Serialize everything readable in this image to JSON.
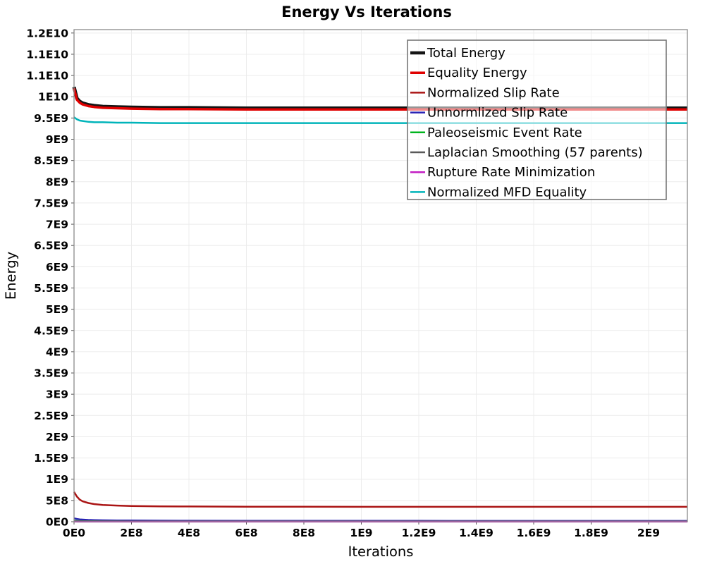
{
  "page": {
    "title": "Energy Vs Iterations"
  },
  "chart_data": {
    "type": "line",
    "title": "Energy Vs Iterations",
    "xlabel": "Iterations",
    "ylabel": "Energy",
    "grid": true,
    "legend_position": "top-right",
    "xlim": [
      0,
      2135000000.0
    ],
    "ylim": [
      0,
      11580000000.0
    ],
    "x_ticks": [
      {
        "value": 0,
        "label": "0E0"
      },
      {
        "value": 200000000.0,
        "label": "2E8"
      },
      {
        "value": 400000000.0,
        "label": "4E8"
      },
      {
        "value": 600000000.0,
        "label": "6E8"
      },
      {
        "value": 800000000.0,
        "label": "8E8"
      },
      {
        "value": 1000000000.0,
        "label": "1E9"
      },
      {
        "value": 1200000000.0,
        "label": "1.2E9"
      },
      {
        "value": 1400000000.0,
        "label": "1.4E9"
      },
      {
        "value": 1600000000.0,
        "label": "1.6E9"
      },
      {
        "value": 1800000000.0,
        "label": "1.8E9"
      },
      {
        "value": 2000000000.0,
        "label": "2E9"
      }
    ],
    "y_ticks": [
      {
        "value": 0,
        "label": "0E0"
      },
      {
        "value": 500000000.0,
        "label": "5E8"
      },
      {
        "value": 1000000000.0,
        "label": "1E9"
      },
      {
        "value": 1500000000.0,
        "label": "1.5E9"
      },
      {
        "value": 2000000000.0,
        "label": "2E9"
      },
      {
        "value": 2500000000.0,
        "label": "2.5E9"
      },
      {
        "value": 3000000000.0,
        "label": "3E9"
      },
      {
        "value": 3500000000.0,
        "label": "3.5E9"
      },
      {
        "value": 4000000000.0,
        "label": "4E9"
      },
      {
        "value": 4500000000.0,
        "label": "4.5E9"
      },
      {
        "value": 5000000000.0,
        "label": "5E9"
      },
      {
        "value": 5500000000.0,
        "label": "5.5E9"
      },
      {
        "value": 6000000000.0,
        "label": "6E9"
      },
      {
        "value": 6500000000.0,
        "label": "6.5E9"
      },
      {
        "value": 7000000000.0,
        "label": "7E9"
      },
      {
        "value": 7500000000.0,
        "label": "7.5E9"
      },
      {
        "value": 8000000000.0,
        "label": "8E9"
      },
      {
        "value": 8500000000.0,
        "label": "8.5E9"
      },
      {
        "value": 9000000000.0,
        "label": "9E9"
      },
      {
        "value": 9500000000.0,
        "label": "9.5E9"
      },
      {
        "value": 10000000000.0,
        "label": "1E10"
      },
      {
        "value": 10500000000.0,
        "label": "1.1E10"
      },
      {
        "value": 11000000000.0,
        "label": "1.1E10"
      },
      {
        "value": 11500000000.0,
        "label": "1.2E10"
      }
    ],
    "x_sample": [
      0,
      10000000.0,
      20000000.0,
      30000000.0,
      50000000.0,
      70000000.0,
      100000000.0,
      150000000.0,
      200000000.0,
      300000000.0,
      400000000.0,
      600000000.0,
      800000000.0,
      1000000000.0,
      1200000000.0,
      1500000000.0,
      1800000000.0,
      2000000000.0,
      2135000000.0
    ],
    "series": [
      {
        "name": "Total Energy",
        "color": "#141414",
        "width": 5,
        "y": [
          10230000000.0,
          9960000000.0,
          9890000000.0,
          9850000000.0,
          9810000000.0,
          9790000000.0,
          9770000000.0,
          9760000000.0,
          9750000000.0,
          9740000000.0,
          9740000000.0,
          9730000000.0,
          9730000000.0,
          9730000000.0,
          9730000000.0,
          9730000000.0,
          9730000000.0,
          9730000000.0,
          9730000000.0
        ]
      },
      {
        "name": "Equality Energy",
        "color": "#df0000",
        "width": 3.5,
        "y": [
          10200000000.0,
          9930000000.0,
          9860000000.0,
          9820000000.0,
          9780000000.0,
          9760000000.0,
          9740000000.0,
          9730000000.0,
          9720000000.0,
          9710000000.0,
          9710000000.0,
          9700000000.0,
          9700000000.0,
          9700000000.0,
          9700000000.0,
          9700000000.0,
          9700000000.0,
          9700000000.0,
          9700000000.0
        ]
      },
      {
        "name": "Normalized Slip Rate",
        "color": "#aa1414",
        "width": 2.5,
        "y": [
          700000000.0,
          590000000.0,
          520000000.0,
          480000000.0,
          440000000.0,
          415000000.0,
          395000000.0,
          380000000.0,
          370000000.0,
          362000000.0,
          358000000.0,
          354000000.0,
          352000000.0,
          350000000.0,
          350000000.0,
          350000000.0,
          350000000.0,
          350000000.0,
          350000000.0
        ]
      },
      {
        "name": "Unnormlized Slip Rate",
        "color": "#2822b4",
        "width": 2.5,
        "y": [
          80000000.0,
          64000000.0,
          55000000.0,
          49000000.0,
          42000000.0,
          38000000.0,
          34000000.0,
          30000000.0,
          28000000.0,
          25000000.0,
          24000000.0,
          22000000.0,
          21000000.0,
          20000000.0,
          20000000.0,
          19000000.0,
          19000000.0,
          18000000.0,
          18000000.0
        ]
      },
      {
        "name": "Paleoseismic Event Rate",
        "color": "#00b41e",
        "width": 2.5,
        "y": [
          24000000.0,
          19000000.0,
          16000000.0,
          14000000.0,
          12000000.0,
          11000000.0,
          10000000.0,
          9500000.0,
          9000000.0,
          8500000.0,
          8200000.0,
          8000000.0,
          8000000.0,
          8000000.0,
          8000000.0,
          8000000.0,
          8000000.0,
          8000000.0,
          8000000.0
        ]
      },
      {
        "name": "Laplacian Smoothing (57 parents)",
        "color": "#5a5a5a",
        "width": 2.5,
        "y": [
          7000000.0,
          6500000.0,
          6000000.0,
          5800000.0,
          5500000.0,
          5300000.0,
          5200000.0,
          5000000.0,
          5000000.0,
          5000000.0,
          5000000.0,
          5000000.0,
          5000000.0,
          5000000.0,
          5000000.0,
          5000000.0,
          5000000.0,
          5000000.0,
          5000000.0
        ]
      },
      {
        "name": "Rupture Rate Minimization",
        "color": "#c31ec3",
        "width": 2.5,
        "y": [
          2500000.0,
          2000000.0,
          1800000.0,
          1600000.0,
          1400000.0,
          1300000.0,
          1200000.0,
          1100000.0,
          1000000.0,
          1000000.0,
          1000000.0,
          1000000.0,
          1000000.0,
          1000000.0,
          1000000.0,
          1000000.0,
          1000000.0,
          1000000.0,
          1000000.0
        ]
      },
      {
        "name": "Normalized MFD Equality",
        "color": "#00b4ba",
        "width": 2.5,
        "y": [
          9520000000.0,
          9470000000.0,
          9440000000.0,
          9430000000.0,
          9410000000.0,
          9400000000.0,
          9400000000.0,
          9390000000.0,
          9390000000.0,
          9380000000.0,
          9380000000.0,
          9380000000.0,
          9380000000.0,
          9380000000.0,
          9380000000.0,
          9380000000.0,
          9380000000.0,
          9380000000.0,
          9380000000.0
        ]
      }
    ],
    "colors": {
      "grid": "#ececec",
      "plot_border": "#8a8a8a",
      "tick_mark": "#555555",
      "legend_border": "#777777"
    }
  }
}
